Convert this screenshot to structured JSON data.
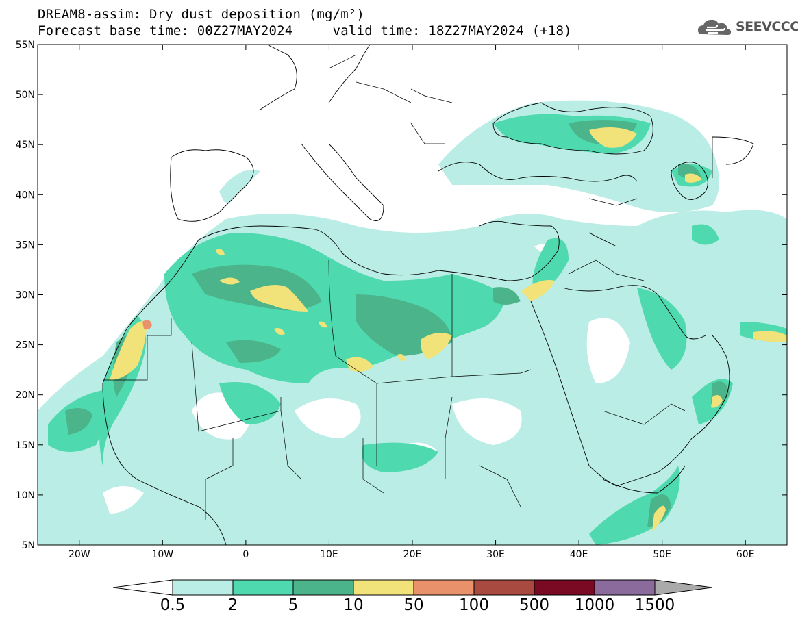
{
  "header": {
    "title_line1": "DREAM8-assim: Dry dust deposition (mg/m²)",
    "title_line2": "Forecast base time: 00Z27MAY2024     valid time: 18Z27MAY2024 (+18)"
  },
  "logo": {
    "text": "SEEVCCC",
    "icon": "cloud-icon"
  },
  "axes": {
    "lat_labels": [
      "55N",
      "50N",
      "45N",
      "40N",
      "35N",
      "30N",
      "25N",
      "20N",
      "15N",
      "10N",
      "5N"
    ],
    "lon_labels": [
      "20W",
      "10W",
      "0",
      "10E",
      "20E",
      "30E",
      "40E",
      "50E",
      "60E"
    ]
  },
  "colorbar": {
    "labels": [
      "0.5",
      "2",
      "5",
      "10",
      "50",
      "100",
      "500",
      "1000",
      "1500"
    ],
    "colors": [
      "#b9ede5",
      "#4fd9ae",
      "#4bb48a",
      "#f1e37a",
      "#e8916a",
      "#a84a3f",
      "#7a0a23",
      "#8b6a9c",
      "#aaaaaa"
    ]
  },
  "fill_colors": {
    "c1": "#b9ede5",
    "c2": "#4fd9ae",
    "c3": "#4bb48a",
    "c4": "#f1e37a",
    "c5": "#e8916a"
  }
}
